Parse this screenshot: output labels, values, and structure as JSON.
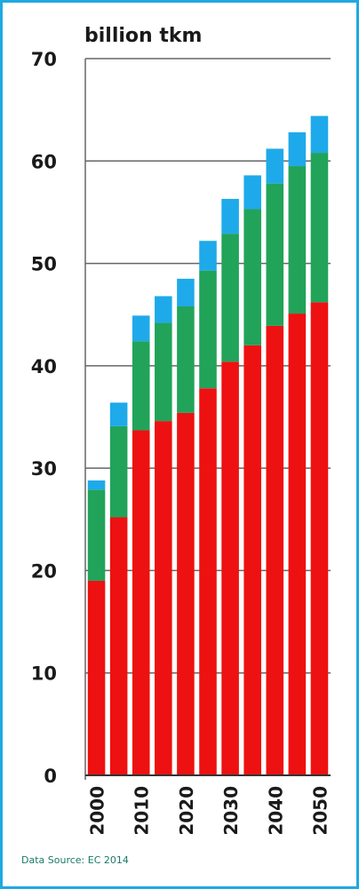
{
  "chart_data": {
    "type": "bar",
    "stacked": true,
    "title": "",
    "ylabel": "billion tkm",
    "xlabel": "",
    "ylim": [
      0,
      70
    ],
    "yticks": [
      0,
      10,
      20,
      30,
      40,
      50,
      60,
      70
    ],
    "grid": "horizontal",
    "categories": [
      "2000",
      "2005",
      "2010",
      "2015",
      "2020",
      "2025",
      "2030",
      "2035",
      "2040",
      "2045",
      "2050"
    ],
    "tick_labels": [
      "2000",
      "",
      "2010",
      "",
      "2020",
      "",
      "2030",
      "",
      "2040",
      "",
      "2050"
    ],
    "series": [
      {
        "color": "#ee1111",
        "values": [
          19.0,
          25.2,
          33.7,
          34.6,
          35.4,
          37.8,
          40.4,
          42.0,
          43.9,
          45.1,
          46.2
        ]
      },
      {
        "color": "#21a35a",
        "values": [
          8.9,
          8.9,
          8.7,
          9.6,
          10.4,
          11.5,
          12.5,
          13.3,
          13.9,
          14.4,
          14.6
        ]
      },
      {
        "color": "#1eaaea",
        "values": [
          0.9,
          2.3,
          2.5,
          2.6,
          2.7,
          2.9,
          3.4,
          3.3,
          3.4,
          3.3,
          3.6
        ]
      }
    ]
  },
  "source": "Data Source: EC 2014"
}
